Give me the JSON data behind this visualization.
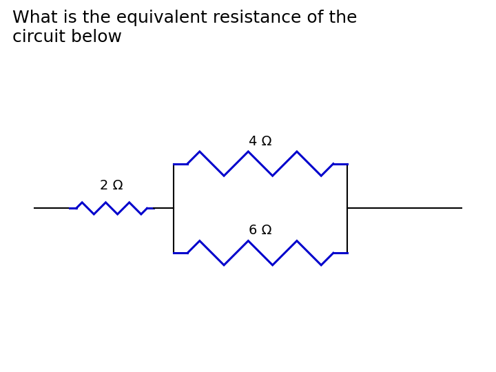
{
  "title": "What is the equivalent resistance of the\ncircuit below",
  "title_fontsize": 18,
  "title_color": "#000000",
  "bg_color": "#ffffff",
  "wire_color": "#000000",
  "resistor_color": "#0000cc",
  "label_color": "#000000",
  "label_fontsize": 14,
  "resistor_labels": [
    "2 Ω",
    "4 Ω",
    "6 Ω"
  ],
  "wire_linewidth": 1.5,
  "resistor_linewidth": 2.2
}
